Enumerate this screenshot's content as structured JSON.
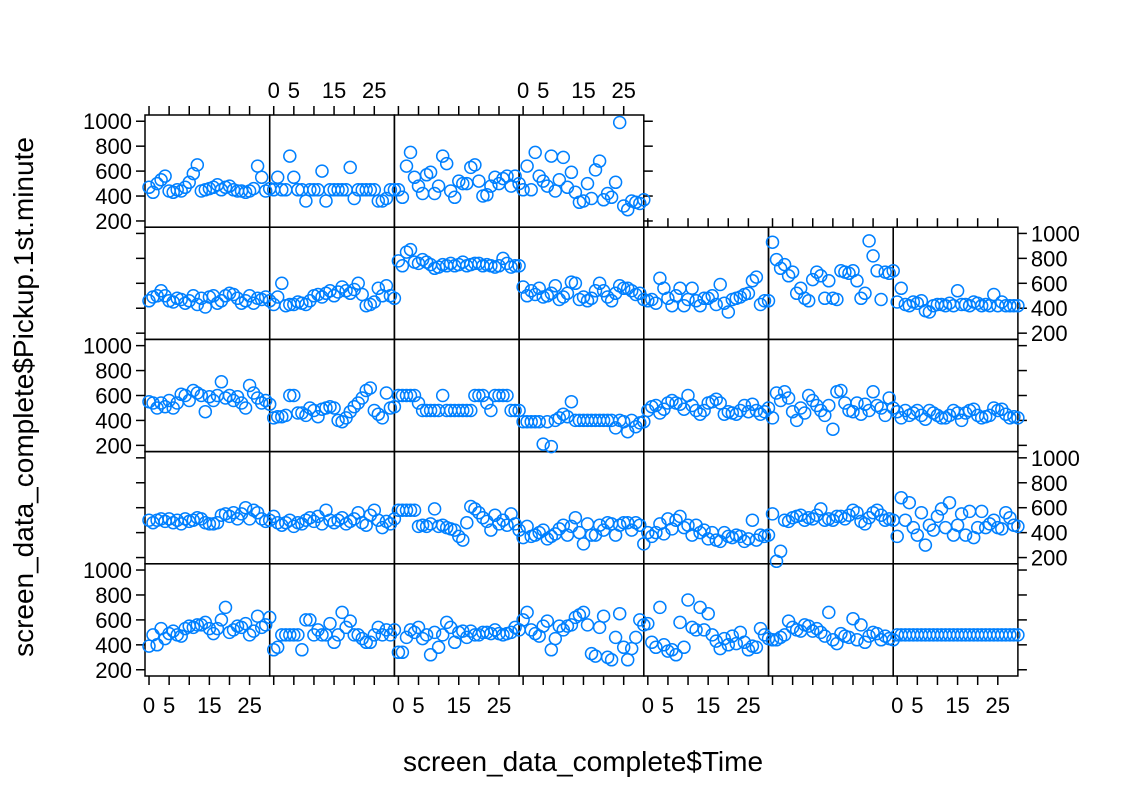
{
  "chart_data": {
    "type": "scatter",
    "layout": "lattice panels, 8 columns x 5 rows (first row only 4 panels)",
    "xlabel": "screen_data_complete$Time",
    "ylabel": "screen_data_complete$Pickup.1st.minute",
    "xlim": [
      -1,
      30
    ],
    "ylim": [
      150,
      1050
    ],
    "x_ticks": [
      0,
      5,
      10,
      15,
      20,
      25
    ],
    "x_tick_labels": [
      "0",
      "5",
      "",
      "15",
      "",
      "25"
    ],
    "y_ticks": [
      200,
      400,
      600,
      800,
      1000
    ],
    "y_tick_labels": [
      "200",
      "400",
      "600",
      "800",
      "1000"
    ],
    "point_color": "#0080ff",
    "marker": "open circle",
    "grid": false,
    "legend": "none",
    "panels": [
      {
        "row": 0,
        "col": 0,
        "values": [
          470,
          430,
          500,
          530,
          560,
          440,
          430,
          450,
          440,
          470,
          510,
          580,
          650,
          440,
          450,
          460,
          470,
          490,
          450,
          470,
          480,
          450,
          440,
          440,
          430,
          440,
          460,
          640,
          550,
          440,
          460
        ]
      },
      {
        "row": 0,
        "col": 1,
        "values": [
          450,
          550,
          450,
          450,
          720,
          550,
          450,
          450,
          360,
          450,
          450,
          450,
          600,
          360,
          450,
          450,
          450,
          450,
          450,
          630,
          380,
          450,
          450,
          450,
          450,
          450,
          360,
          360,
          380,
          450,
          450
        ]
      },
      {
        "row": 0,
        "col": 2,
        "values": [
          450,
          390,
          640,
          750,
          550,
          480,
          420,
          570,
          590,
          420,
          480,
          720,
          660,
          440,
          390,
          520,
          500,
          500,
          630,
          650,
          520,
          400,
          410,
          480,
          550,
          500,
          540,
          560,
          480,
          560,
          500
        ]
      },
      {
        "row": 0,
        "col": 3,
        "values": [
          450,
          640,
          450,
          750,
          560,
          520,
          480,
          720,
          440,
          530,
          710,
          470,
          590,
          430,
          350,
          360,
          500,
          380,
          610,
          680,
          370,
          420,
          390,
          510,
          990,
          320,
          290,
          360,
          350,
          340,
          370
        ]
      },
      {
        "row": 1,
        "col": 0,
        "values": [
          460,
          490,
          500,
          540,
          500,
          460,
          450,
          480,
          470,
          440,
          460,
          500,
          430,
          480,
          410,
          490,
          500,
          440,
          460,
          500,
          520,
          510,
          480,
          440,
          460,
          500,
          440,
          480,
          470,
          490,
          460
        ]
      },
      {
        "row": 1,
        "col": 1,
        "values": [
          430,
          490,
          600,
          420,
          430,
          430,
          450,
          440,
          430,
          460,
          500,
          510,
          490,
          520,
          540,
          500,
          530,
          570,
          540,
          520,
          550,
          600,
          510,
          420,
          430,
          450,
          560,
          500,
          580,
          500,
          480
        ]
      },
      {
        "row": 1,
        "col": 2,
        "values": [
          780,
          740,
          850,
          870,
          770,
          760,
          790,
          770,
          750,
          720,
          730,
          750,
          740,
          760,
          740,
          750,
          770,
          740,
          750,
          760,
          760,
          740,
          750,
          740,
          730,
          740,
          800,
          760,
          730,
          740,
          740
        ]
      },
      {
        "row": 1,
        "col": 3,
        "values": [
          570,
          500,
          540,
          510,
          560,
          490,
          500,
          520,
          580,
          470,
          490,
          520,
          610,
          600,
          470,
          490,
          460,
          480,
          540,
          600,
          540,
          490,
          460,
          520,
          580,
          560,
          560,
          540,
          510,
          520,
          470
        ]
      },
      {
        "row": 1,
        "col": 4,
        "values": [
          460,
          470,
          440,
          640,
          560,
          480,
          420,
          500,
          560,
          420,
          470,
          560,
          460,
          420,
          480,
          480,
          500,
          430,
          590,
          440,
          370,
          470,
          480,
          490,
          510,
          520,
          620,
          650,
          430,
          460,
          460
        ]
      },
      {
        "row": 1,
        "col": 5,
        "values": [
          930,
          790,
          720,
          750,
          660,
          690,
          520,
          560,
          480,
          460,
          630,
          690,
          660,
          480,
          620,
          480,
          470,
          700,
          690,
          680,
          700,
          620,
          480,
          520,
          940,
          820,
          700,
          470,
          690,
          680,
          700
        ]
      },
      {
        "row": 1,
        "col": 6,
        "values": [
          450,
          560,
          430,
          420,
          450,
          440,
          460,
          380,
          370,
          420,
          430,
          430,
          420,
          440,
          420,
          540,
          430,
          430,
          420,
          450,
          440,
          420,
          430,
          420,
          510,
          420,
          450,
          420,
          420,
          420,
          420
        ]
      },
      {
        "row": 2,
        "col": 0,
        "values": [
          550,
          540,
          500,
          540,
          510,
          560,
          500,
          540,
          610,
          600,
          560,
          640,
          620,
          600,
          470,
          590,
          560,
          600,
          710,
          580,
          600,
          560,
          590,
          540,
          500,
          680,
          620,
          580,
          540,
          560,
          530
        ]
      },
      {
        "row": 2,
        "col": 1,
        "values": [
          420,
          430,
          430,
          440,
          600,
          600,
          460,
          460,
          440,
          500,
          480,
          430,
          490,
          500,
          510,
          500,
          400,
          390,
          420,
          470,
          510,
          540,
          580,
          640,
          660,
          480,
          450,
          420,
          620,
          500,
          510
        ]
      },
      {
        "row": 2,
        "col": 2,
        "values": [
          600,
          600,
          600,
          600,
          600,
          540,
          480,
          480,
          480,
          480,
          480,
          600,
          480,
          480,
          480,
          480,
          480,
          480,
          480,
          600,
          600,
          600,
          540,
          480,
          600,
          600,
          600,
          600,
          480,
          480,
          480
        ]
      },
      {
        "row": 2,
        "col": 3,
        "values": [
          390,
          390,
          390,
          390,
          390,
          210,
          390,
          190,
          400,
          420,
          450,
          430,
          550,
          400,
          400,
          400,
          400,
          400,
          400,
          400,
          400,
          400,
          400,
          340,
          400,
          390,
          310,
          400,
          350,
          380,
          390
        ]
      },
      {
        "row": 2,
        "col": 4,
        "values": [
          480,
          510,
          520,
          460,
          490,
          540,
          560,
          540,
          530,
          490,
          600,
          520,
          480,
          450,
          480,
          540,
          550,
          570,
          540,
          450,
          470,
          460,
          450,
          480,
          520,
          470,
          530,
          480,
          450,
          470,
          500
        ]
      },
      {
        "row": 2,
        "col": 5,
        "values": [
          420,
          620,
          560,
          630,
          580,
          470,
          400,
          500,
          460,
          600,
          560,
          520,
          480,
          440,
          520,
          330,
          630,
          640,
          540,
          480,
          470,
          540,
          450,
          530,
          480,
          630,
          520,
          500,
          440,
          580,
          500
        ]
      },
      {
        "row": 2,
        "col": 6,
        "values": [
          470,
          420,
          480,
          440,
          460,
          480,
          440,
          410,
          480,
          460,
          440,
          420,
          420,
          440,
          480,
          460,
          400,
          460,
          480,
          490,
          440,
          420,
          430,
          440,
          500,
          480,
          490,
          450,
          420,
          430,
          420
        ]
      },
      {
        "row": 3,
        "col": 0,
        "values": [
          500,
          480,
          500,
          510,
          490,
          510,
          480,
          500,
          470,
          510,
          490,
          500,
          520,
          510,
          480,
          470,
          470,
          480,
          540,
          550,
          530,
          560,
          510,
          550,
          600,
          510,
          580,
          560,
          510,
          490,
          500
        ]
      },
      {
        "row": 3,
        "col": 1,
        "values": [
          530,
          480,
          460,
          480,
          500,
          450,
          480,
          470,
          500,
          520,
          490,
          530,
          470,
          580,
          500,
          480,
          500,
          520,
          470,
          490,
          510,
          560,
          480,
          460,
          540,
          580,
          500,
          440,
          490,
          470,
          510
        ]
      },
      {
        "row": 3,
        "col": 2,
        "values": [
          580,
          580,
          580,
          580,
          580,
          450,
          460,
          450,
          470,
          590,
          450,
          460,
          440,
          430,
          420,
          370,
          340,
          480,
          610,
          590,
          560,
          520,
          490,
          420,
          540,
          470,
          500,
          460,
          550,
          470,
          420
        ]
      },
      {
        "row": 3,
        "col": 3,
        "values": [
          360,
          450,
          370,
          380,
          400,
          420,
          350,
          370,
          390,
          430,
          460,
          380,
          450,
          520,
          400,
          310,
          470,
          380,
          380,
          460,
          420,
          480,
          470,
          380,
          460,
          480,
          480,
          420,
          480,
          460,
          310
        ]
      },
      {
        "row": 3,
        "col": 4,
        "values": [
          400,
          370,
          400,
          470,
          390,
          510,
          430,
          500,
          530,
          440,
          460,
          380,
          460,
          400,
          420,
          350,
          400,
          340,
          330,
          400,
          370,
          360,
          380,
          370,
          330,
          350,
          500,
          340,
          380,
          370,
          380
        ]
      },
      {
        "row": 3,
        "col": 5,
        "values": [
          550,
          170,
          250,
          500,
          490,
          520,
          530,
          540,
          500,
          520,
          510,
          540,
          590,
          500,
          510,
          500,
          530,
          530,
          510,
          540,
          580,
          560,
          490,
          470,
          520,
          560,
          580,
          540,
          500,
          510,
          500
        ]
      },
      {
        "row": 3,
        "col": 6,
        "values": [
          370,
          680,
          500,
          640,
          440,
          380,
          560,
          300,
          460,
          420,
          530,
          590,
          440,
          640,
          380,
          460,
          550,
          380,
          570,
          360,
          440,
          570,
          440,
          470,
          500,
          440,
          430,
          560,
          520,
          460,
          450
        ]
      },
      {
        "row": 4,
        "col": 0,
        "values": [
          390,
          480,
          400,
          530,
          450,
          490,
          510,
          480,
          470,
          530,
          550,
          540,
          560,
          560,
          580,
          530,
          490,
          530,
          600,
          700,
          500,
          520,
          550,
          540,
          570,
          480,
          510,
          630,
          540,
          560,
          620
        ]
      },
      {
        "row": 4,
        "col": 1,
        "values": [
          360,
          380,
          480,
          480,
          480,
          480,
          480,
          360,
          600,
          600,
          480,
          520,
          480,
          480,
          570,
          420,
          480,
          660,
          540,
          590,
          480,
          480,
          450,
          420,
          420,
          480,
          540,
          480,
          520,
          480,
          520
        ]
      },
      {
        "row": 4,
        "col": 2,
        "values": [
          340,
          340,
          460,
          520,
          500,
          540,
          450,
          480,
          320,
          500,
          380,
          480,
          580,
          540,
          420,
          500,
          510,
          460,
          510,
          480,
          480,
          500,
          500,
          490,
          520,
          490,
          480,
          490,
          500,
          540,
          520
        ]
      },
      {
        "row": 4,
        "col": 3,
        "values": [
          600,
          660,
          520,
          490,
          470,
          550,
          590,
          360,
          450,
          550,
          520,
          550,
          560,
          620,
          640,
          660,
          560,
          330,
          310,
          540,
          630,
          300,
          280,
          460,
          650,
          380,
          280,
          370,
          460,
          600,
          560
        ]
      },
      {
        "row": 4,
        "col": 4,
        "values": [
          570,
          420,
          380,
          700,
          400,
          350,
          360,
          320,
          580,
          380,
          760,
          540,
          520,
          700,
          520,
          650,
          480,
          430,
          370,
          450,
          400,
          470,
          410,
          500,
          420,
          360,
          390,
          380,
          530,
          480,
          450
        ]
      },
      {
        "row": 4,
        "col": 5,
        "values": [
          440,
          440,
          460,
          480,
          590,
          540,
          520,
          510,
          560,
          550,
          510,
          530,
          500,
          470,
          660,
          440,
          410,
          490,
          470,
          460,
          610,
          440,
          560,
          420,
          470,
          500,
          490,
          440,
          470,
          450,
          440
        ]
      },
      {
        "row": 4,
        "col": 6,
        "values": [
          480,
          480,
          480,
          480,
          480,
          480,
          480,
          480,
          480,
          480,
          480,
          480,
          480,
          480,
          480,
          480,
          480,
          480,
          480,
          480,
          480,
          480,
          480,
          480,
          480,
          480,
          480,
          480,
          480,
          480,
          480
        ]
      }
    ]
  }
}
